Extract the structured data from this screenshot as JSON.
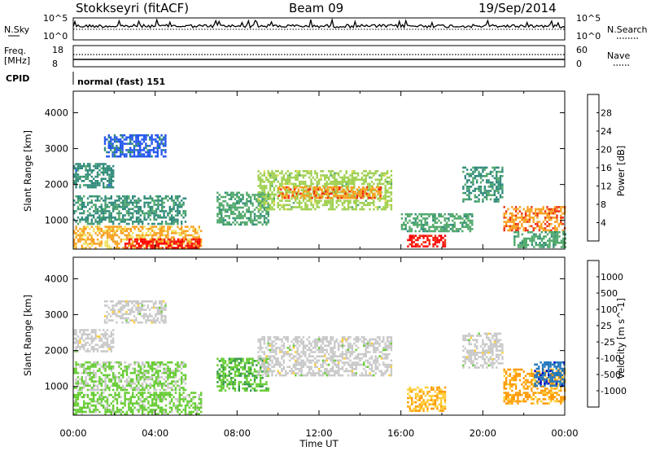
{
  "header": {
    "station": "Stokkseyri (fitACF)",
    "beam": "Beam 09",
    "date": "19/Sep/2014"
  },
  "strips": {
    "nsky_label": "N.Sky",
    "nsky_ticks": [
      "10^5",
      "10^0"
    ],
    "nsearch_label": "N.Search",
    "freq_label": "Freq.",
    "freq_unit": "[MHz]",
    "freq_ticks": [
      "18",
      "8"
    ],
    "nave_label": "Nave",
    "nave_ticks": [
      "60",
      "0"
    ],
    "cpid_label": "CPID",
    "cpid_value": "normal (fast) 151"
  },
  "colors": {
    "power": [
      "#0000ff",
      "#2255ee",
      "#2f8a7a",
      "#4fa86a",
      "#9fd04f",
      "#f0e060",
      "#f7a020",
      "#ee3010",
      "#ff0000"
    ],
    "velocity": [
      "#ff0000",
      "#ff5500",
      "#ff9900",
      "#ffcc33",
      "#c8c8c8",
      "#66cc33",
      "#339944",
      "#2277bb",
      "#0000cc"
    ]
  },
  "chart_data": [
    {
      "type": "heatmap",
      "name": "Power",
      "ylabel": "Slant Range [km]",
      "ylim": [
        200,
        4600
      ],
      "yticks": [
        "4000",
        "3000",
        "2000",
        "1000"
      ],
      "colorbar_label": "Power [dB]",
      "colorbar_ticks": [
        "28",
        "24",
        "20",
        "16",
        "12",
        "8",
        "4"
      ],
      "colorbar_range": [
        0,
        32
      ],
      "features": [
        {
          "t0": 0.0,
          "t1": 6.2,
          "r0": 250,
          "r1": 850,
          "level": 22
        },
        {
          "t0": 2.5,
          "t1": 6.2,
          "r0": 250,
          "r1": 500,
          "level": 29
        },
        {
          "t0": 0.0,
          "t1": 2.0,
          "r0": 1900,
          "r1": 2600,
          "level": 9
        },
        {
          "t0": 1.5,
          "t1": 4.5,
          "r0": 2800,
          "r1": 3400,
          "level": 6
        },
        {
          "t0": 0.0,
          "t1": 5.5,
          "r0": 900,
          "r1": 1700,
          "level": 10
        },
        {
          "t0": 7.0,
          "t1": 9.5,
          "r0": 900,
          "r1": 1800,
          "level": 12
        },
        {
          "t0": 9.0,
          "t1": 15.5,
          "r0": 1300,
          "r1": 2400,
          "level": 16
        },
        {
          "t0": 10.0,
          "t1": 15.0,
          "r0": 1650,
          "r1": 1950,
          "level": 24
        },
        {
          "t0": 16.3,
          "t1": 18.2,
          "r0": 300,
          "r1": 600,
          "level": 29
        },
        {
          "t0": 16.0,
          "t1": 19.5,
          "r0": 700,
          "r1": 1200,
          "level": 12
        },
        {
          "t0": 19.0,
          "t1": 21.0,
          "r0": 1500,
          "r1": 2500,
          "level": 10
        },
        {
          "t0": 21.0,
          "t1": 24.0,
          "r0": 700,
          "r1": 1400,
          "level": 24
        },
        {
          "t0": 21.5,
          "t1": 24.0,
          "r0": 250,
          "r1": 700,
          "level": 12
        }
      ]
    },
    {
      "type": "heatmap",
      "name": "Velocity",
      "ylabel": "Slant Range [km]",
      "ylim": [
        200,
        4600
      ],
      "yticks": [
        "4000",
        "3000",
        "2000",
        "1000"
      ],
      "colorbar_label": "Velocity [m s^-1]",
      "colorbar_ticks": [
        "1000",
        "500",
        "100",
        "25",
        "-25",
        "-100",
        "-500",
        "-1000"
      ],
      "colorbar_range": [
        -1000,
        1000
      ],
      "features": [
        {
          "t0": 0.0,
          "t1": 6.2,
          "r0": 250,
          "r1": 850,
          "level": 200
        },
        {
          "t0": 0.0,
          "t1": 2.0,
          "r0": 2000,
          "r1": 2600,
          "level": 0
        },
        {
          "t0": 1.5,
          "t1": 4.5,
          "r0": 2800,
          "r1": 3400,
          "level": 0
        },
        {
          "t0": 0.0,
          "t1": 5.5,
          "r0": 900,
          "r1": 1700,
          "level": 150
        },
        {
          "t0": 7.0,
          "t1": 9.5,
          "r0": 900,
          "r1": 1800,
          "level": 300
        },
        {
          "t0": 9.0,
          "t1": 15.5,
          "r0": 1300,
          "r1": 2400,
          "level": 0
        },
        {
          "t0": 16.3,
          "t1": 18.2,
          "r0": 300,
          "r1": 1000,
          "level": -300
        },
        {
          "t0": 19.0,
          "t1": 21.0,
          "r0": 1500,
          "r1": 2500,
          "level": 0
        },
        {
          "t0": 21.0,
          "t1": 24.0,
          "r0": 500,
          "r1": 1500,
          "level": -400
        },
        {
          "t0": 22.5,
          "t1": 24.0,
          "r0": 1000,
          "r1": 1700,
          "level": 700
        }
      ]
    }
  ],
  "xaxis": {
    "label": "Time UT",
    "ticks": [
      "00:00",
      "04:00",
      "08:00",
      "12:00",
      "16:00",
      "20:00",
      "00:00"
    ],
    "range_hours": [
      0,
      24
    ]
  }
}
